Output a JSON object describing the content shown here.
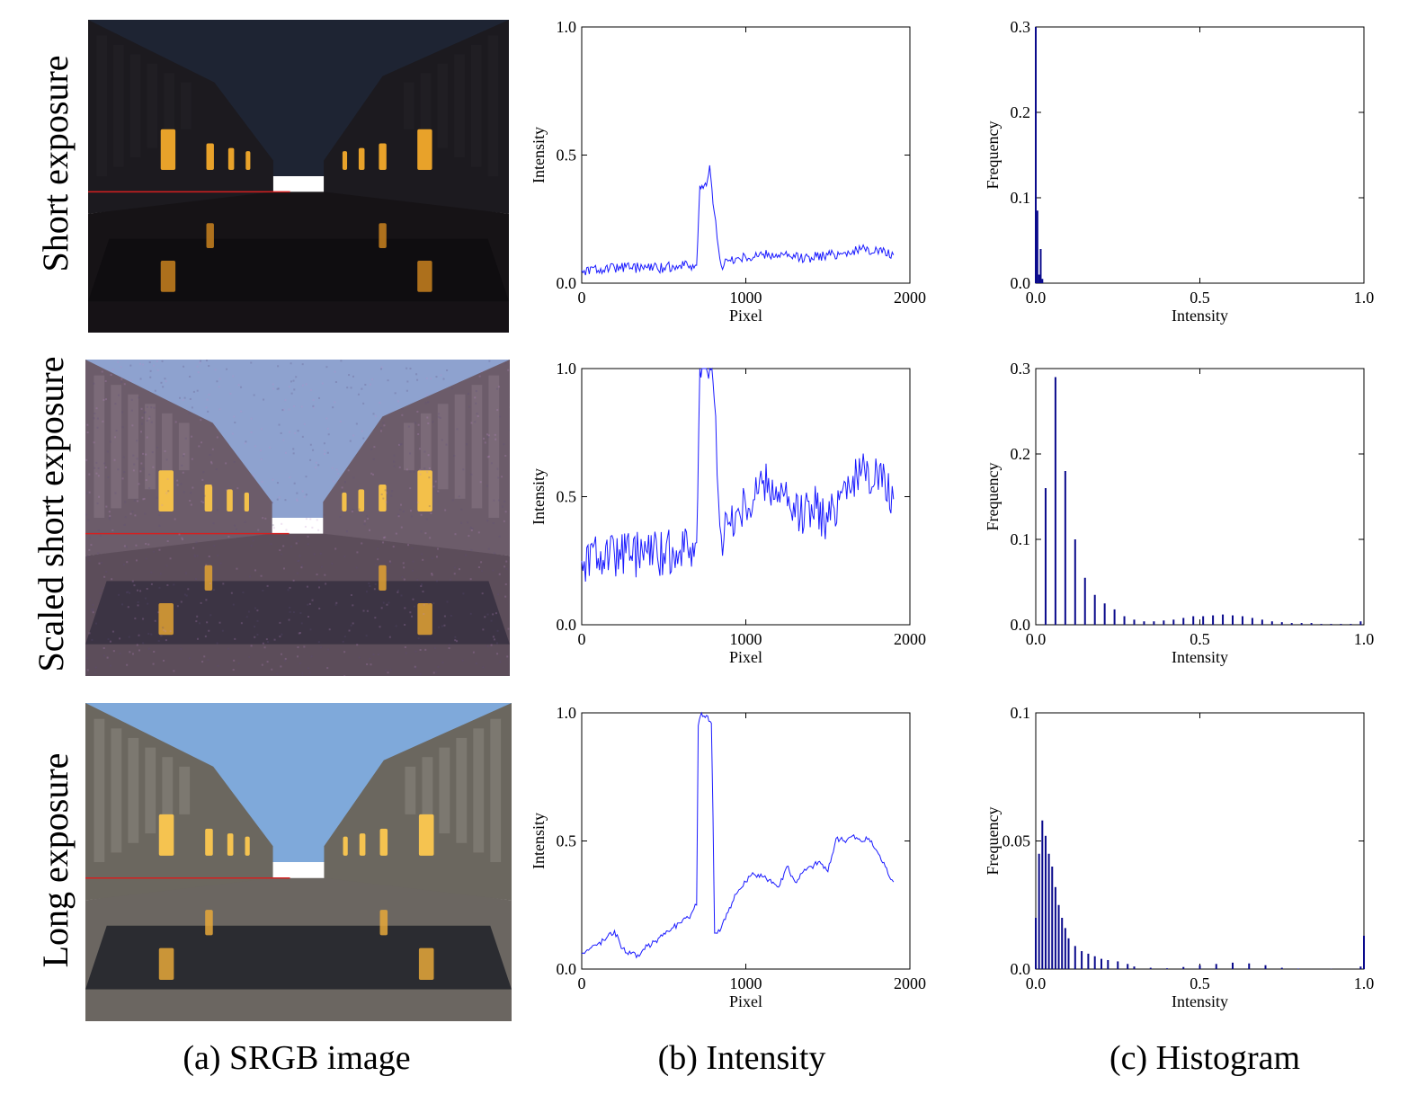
{
  "rows": [
    {
      "label": "Short exposure",
      "scene": "short"
    },
    {
      "label": "Scaled short exposure",
      "scene": "scaled"
    },
    {
      "label": "Long exposure",
      "scene": "long"
    }
  ],
  "captions": {
    "a": "(a) SRGB image",
    "b": "(b) Intensity",
    "c": "(c) Histogram"
  },
  "colors": {
    "intensity_line": "#1a1aff",
    "histogram_bars": "#0a0a8c",
    "scanline": "#d42020"
  },
  "chart_data": [
    {
      "id": "intensity-short",
      "type": "line",
      "xlabel": "Pixel",
      "ylabel": "Intensity",
      "xlim": [
        0,
        2000
      ],
      "ylim": [
        0,
        1.0
      ],
      "xticks": [
        "0",
        "1000",
        "2000"
      ],
      "yticks": [
        "0.0",
        "0.5",
        "1.0"
      ],
      "series": [
        {
          "x": [
            0,
            100,
            200,
            300,
            400,
            500,
            600,
            700,
            720,
            740,
            760,
            780,
            800,
            850,
            900,
            1000,
            1100,
            1200,
            1300,
            1400,
            1500,
            1600,
            1700,
            1800,
            1900
          ],
          "y": [
            0.05,
            0.05,
            0.06,
            0.06,
            0.06,
            0.06,
            0.07,
            0.07,
            0.38,
            0.37,
            0.38,
            0.46,
            0.31,
            0.07,
            0.09,
            0.1,
            0.11,
            0.11,
            0.1,
            0.1,
            0.11,
            0.12,
            0.13,
            0.13,
            0.11
          ]
        }
      ]
    },
    {
      "id": "intensity-scaled",
      "type": "line",
      "xlabel": "Pixel",
      "ylabel": "Intensity",
      "xlim": [
        0,
        2000
      ],
      "ylim": [
        0,
        1.0
      ],
      "xticks": [
        "0",
        "1000",
        "2000"
      ],
      "yticks": [
        "0.0",
        "0.5",
        "1.0"
      ],
      "series": [
        {
          "x": [
            0,
            100,
            200,
            300,
            400,
            500,
            600,
            700,
            720,
            740,
            760,
            780,
            800,
            850,
            900,
            1000,
            1100,
            1200,
            1300,
            1400,
            1500,
            1600,
            1700,
            1800,
            1900
          ],
          "y": [
            0.25,
            0.26,
            0.27,
            0.27,
            0.28,
            0.28,
            0.29,
            0.32,
            1.0,
            1.0,
            1.0,
            1.0,
            0.95,
            0.35,
            0.4,
            0.46,
            0.55,
            0.52,
            0.42,
            0.47,
            0.4,
            0.56,
            0.58,
            0.6,
            0.49
          ]
        }
      ]
    },
    {
      "id": "intensity-long",
      "type": "line",
      "xlabel": "Pixel",
      "ylabel": "Intensity",
      "xlim": [
        0,
        2000
      ],
      "ylim": [
        0,
        1.0
      ],
      "xticks": [
        "0",
        "1000",
        "2000"
      ],
      "yticks": [
        "0.0",
        "0.5",
        "1.0"
      ],
      "series": [
        {
          "x": [
            0,
            50,
            100,
            150,
            200,
            250,
            300,
            350,
            400,
            450,
            500,
            550,
            600,
            650,
            700,
            710,
            730,
            760,
            790,
            800,
            810,
            850,
            900,
            950,
            1000,
            1050,
            1100,
            1150,
            1200,
            1250,
            1300,
            1350,
            1400,
            1450,
            1500,
            1550,
            1600,
            1650,
            1700,
            1750,
            1800,
            1850,
            1900
          ],
          "y": [
            0.06,
            0.08,
            0.1,
            0.12,
            0.15,
            0.08,
            0.06,
            0.05,
            0.09,
            0.11,
            0.14,
            0.16,
            0.18,
            0.2,
            0.25,
            0.95,
            1.0,
            0.99,
            0.96,
            0.6,
            0.14,
            0.16,
            0.24,
            0.3,
            0.34,
            0.37,
            0.36,
            0.35,
            0.32,
            0.4,
            0.34,
            0.38,
            0.4,
            0.42,
            0.38,
            0.51,
            0.5,
            0.52,
            0.5,
            0.51,
            0.46,
            0.4,
            0.34
          ]
        }
      ]
    },
    {
      "id": "histogram-short",
      "type": "bar",
      "xlabel": "Intensity",
      "ylabel": "Frequency",
      "xlim": [
        0,
        1.0
      ],
      "ylim": [
        0,
        0.3
      ],
      "xticks": [
        "0.0",
        "0.5",
        "1.0"
      ],
      "yticks": [
        "0.0",
        "0.1",
        "0.2",
        "0.3"
      ],
      "x": [
        0.0,
        0.005,
        0.01,
        0.015,
        0.02
      ],
      "values": [
        0.3,
        0.085,
        0.01,
        0.04,
        0.005
      ]
    },
    {
      "id": "histogram-scaled",
      "type": "bar",
      "xlabel": "Intensity",
      "ylabel": "Frequency",
      "xlim": [
        0,
        1.0
      ],
      "ylim": [
        0,
        0.3
      ],
      "xticks": [
        "0.0",
        "0.5",
        "1.0"
      ],
      "yticks": [
        "0.0",
        "0.1",
        "0.2",
        "0.3"
      ],
      "x": [
        0.03,
        0.06,
        0.09,
        0.12,
        0.15,
        0.18,
        0.21,
        0.24,
        0.27,
        0.3,
        0.33,
        0.36,
        0.39,
        0.42,
        0.45,
        0.48,
        0.51,
        0.54,
        0.57,
        0.6,
        0.63,
        0.66,
        0.69,
        0.72,
        0.75,
        0.78,
        0.81,
        0.84,
        0.87,
        0.9,
        0.93,
        0.96,
        0.99
      ],
      "values": [
        0.16,
        0.29,
        0.18,
        0.1,
        0.055,
        0.035,
        0.025,
        0.018,
        0.01,
        0.006,
        0.004,
        0.004,
        0.005,
        0.006,
        0.008,
        0.01,
        0.01,
        0.011,
        0.012,
        0.011,
        0.01,
        0.008,
        0.006,
        0.004,
        0.003,
        0.002,
        0.002,
        0.002,
        0.001,
        0.001,
        0.001,
        0.001,
        0.004
      ]
    },
    {
      "id": "histogram-long",
      "type": "bar",
      "xlabel": "Intensity",
      "ylabel": "Frequency",
      "xlim": [
        0,
        1.0
      ],
      "ylim": [
        0,
        0.1
      ],
      "xticks": [
        "0.0",
        "0.5",
        "1.0"
      ],
      "yticks": [
        "0.0",
        "0.05",
        "0.1"
      ],
      "x": [
        0.0,
        0.01,
        0.02,
        0.03,
        0.04,
        0.05,
        0.06,
        0.07,
        0.08,
        0.09,
        0.1,
        0.12,
        0.14,
        0.16,
        0.18,
        0.2,
        0.22,
        0.25,
        0.28,
        0.3,
        0.35,
        0.4,
        0.45,
        0.5,
        0.55,
        0.6,
        0.65,
        0.7,
        0.75,
        0.8,
        0.9,
        0.99,
        1.0
      ],
      "values": [
        0.02,
        0.045,
        0.058,
        0.052,
        0.045,
        0.04,
        0.032,
        0.025,
        0.02,
        0.016,
        0.012,
        0.009,
        0.007,
        0.006,
        0.005,
        0.004,
        0.0035,
        0.003,
        0.002,
        0.001,
        0.0005,
        0.0003,
        0.0008,
        0.0015,
        0.002,
        0.0025,
        0.0022,
        0.0015,
        0.0005,
        0.0002,
        0.0001,
        0.001,
        0.013
      ]
    }
  ]
}
